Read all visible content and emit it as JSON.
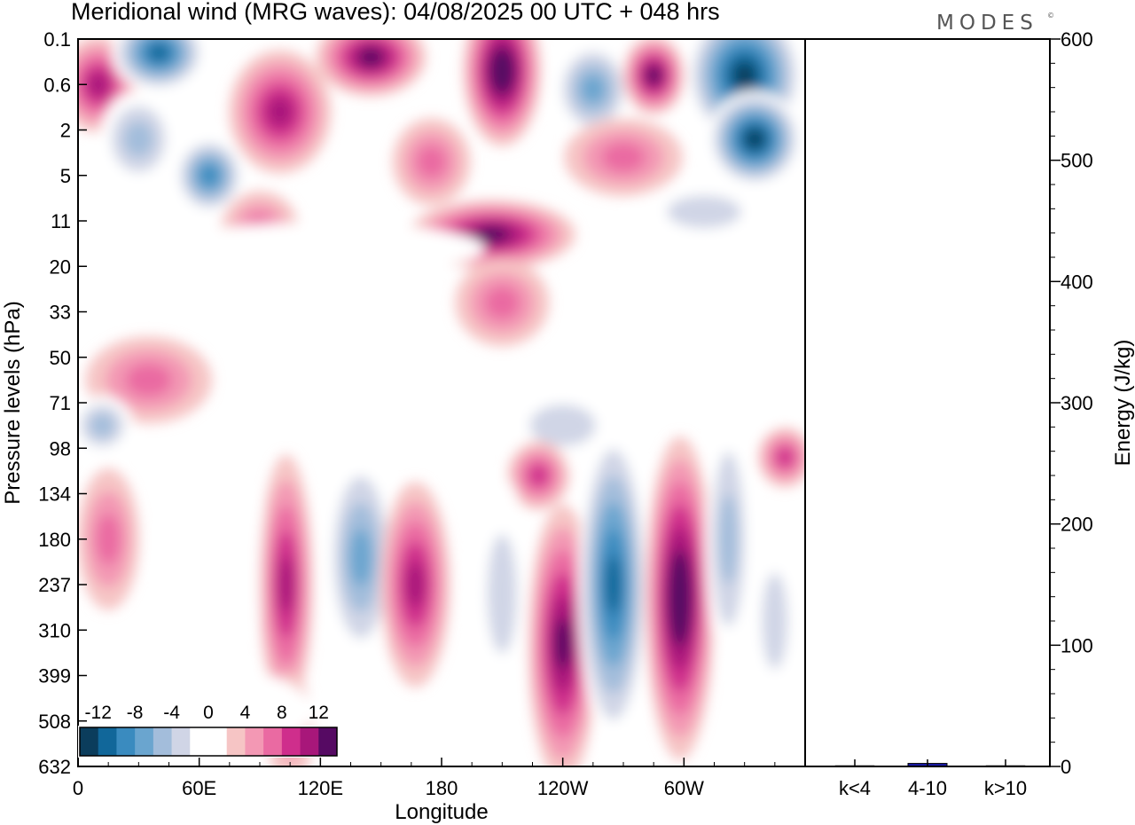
{
  "chart_data": {
    "type": "heatmap",
    "title": "Meridional wind (MRG waves):  04/08/2025  00 UTC  + 048 hrs",
    "brand": "MODES",
    "brand_mark": "©",
    "xlabel": "Longitude",
    "ylabel": "Pressure levels (hPa)",
    "y2label": "Energy (J/kg)",
    "x_ticks": [
      {
        "label": "0",
        "lon": 0
      },
      {
        "label": "60E",
        "lon": 60
      },
      {
        "label": "120E",
        "lon": 120
      },
      {
        "label": "180",
        "lon": 180
      },
      {
        "label": "120W",
        "lon": 240
      },
      {
        "label": "60W",
        "lon": 300
      }
    ],
    "xlim": [
      0,
      360
    ],
    "y_levels": [
      "0.1",
      "0.6",
      "2",
      "5",
      "11",
      "20",
      "33",
      "50",
      "71",
      "98",
      "134",
      "180",
      "237",
      "310",
      "399",
      "508",
      "632"
    ],
    "colorbar": {
      "labels": [
        "-12",
        "-8",
        "-4",
        "0",
        "4",
        "8",
        "12"
      ],
      "label_bins": [
        0,
        2,
        4,
        6,
        8,
        10,
        12
      ],
      "colors": [
        "#0b3d5c",
        "#11679a",
        "#3a8bbf",
        "#6aa5cf",
        "#a3bddb",
        "#d0d5e6",
        "#ffffff",
        "#ffffff",
        "#f6c5c5",
        "#f398b4",
        "#ea6aa2",
        "#cf2e8c",
        "#a8177a",
        "#560a63"
      ]
    },
    "cells": [
      {
        "lon": 10,
        "p": 1,
        "v": 10,
        "w": 18,
        "h": 1.0
      },
      {
        "lon": 40,
        "p": 0.3,
        "v": -12,
        "w": 22,
        "h": 0.8
      },
      {
        "lon": 30,
        "p": 2.2,
        "v": -6,
        "w": 18,
        "h": 1.0
      },
      {
        "lon": 65,
        "p": 3.0,
        "v": -9,
        "w": 16,
        "h": 0.8
      },
      {
        "lon": 90,
        "p": 4.2,
        "v": 6,
        "w": 18,
        "h": 0.8
      },
      {
        "lon": 100,
        "p": 1.6,
        "v": 9,
        "w": 24,
        "h": 1.3
      },
      {
        "lon": 145,
        "p": 0.4,
        "v": 11,
        "w": 26,
        "h": 0.8
      },
      {
        "lon": 175,
        "p": 2.7,
        "v": 5,
        "w": 18,
        "h": 0.9
      },
      {
        "lon": 210,
        "p": 0.7,
        "v": 13,
        "w": 18,
        "h": 1.6
      },
      {
        "lon": 205,
        "p": 4.3,
        "v": 12,
        "w": 40,
        "h": 0.7
      },
      {
        "lon": 255,
        "p": 1.1,
        "v": -8,
        "w": 18,
        "h": 1.0
      },
      {
        "lon": 285,
        "p": 0.8,
        "v": 11,
        "w": 14,
        "h": 0.8
      },
      {
        "lon": 270,
        "p": 2.6,
        "v": 6,
        "w": 28,
        "h": 0.8
      },
      {
        "lon": 330,
        "p": 0.8,
        "v": -13,
        "w": 28,
        "h": 1.5
      },
      {
        "lon": 335,
        "p": 2.2,
        "v": -13,
        "w": 22,
        "h": 1.0
      },
      {
        "lon": 310,
        "p": 3.8,
        "v": -4,
        "w": 34,
        "h": 0.6
      },
      {
        "lon": 120,
        "p": 4.6,
        "v": -1,
        "w": 80,
        "h": 0.5
      },
      {
        "lon": 40,
        "p": 4.8,
        "v": -1,
        "w": 60,
        "h": 0.4
      },
      {
        "lon": 210,
        "p": 5.8,
        "v": 5,
        "w": 22,
        "h": 0.9
      },
      {
        "lon": 35,
        "p": 7.5,
        "v": 6,
        "w": 30,
        "h": 0.9
      },
      {
        "lon": 12,
        "p": 8.5,
        "v": -6,
        "w": 14,
        "h": 0.6
      },
      {
        "lon": 335,
        "p": 7.5,
        "v": -2,
        "w": 22,
        "h": 1.0
      },
      {
        "lon": 240,
        "p": 8.5,
        "v": -3,
        "w": 30,
        "h": 0.8
      },
      {
        "lon": 350,
        "p": 9.2,
        "v": 7,
        "w": 12,
        "h": 0.6
      },
      {
        "lon": 228,
        "p": 9.6,
        "v": 7,
        "w": 14,
        "h": 0.7
      },
      {
        "lon": 15,
        "p": 11.0,
        "v": 5,
        "w": 14,
        "h": 1.5
      },
      {
        "lon": 70,
        "p": 11.5,
        "v": -2,
        "w": 28,
        "h": 1.5
      },
      {
        "lon": 103,
        "p": 12.0,
        "v": 9,
        "w": 12,
        "h": 2.8
      },
      {
        "lon": 140,
        "p": 11.4,
        "v": -7,
        "w": 16,
        "h": 2.3
      },
      {
        "lon": 167,
        "p": 12.0,
        "v": 10,
        "w": 16,
        "h": 2.2
      },
      {
        "lon": 210,
        "p": 12.2,
        "v": -4,
        "w": 12,
        "h": 2.5
      },
      {
        "lon": 240,
        "p": 13.3,
        "v": 11,
        "w": 16,
        "h": 3.0
      },
      {
        "lon": 265,
        "p": 12.0,
        "v": -11,
        "w": 16,
        "h": 3.5
      },
      {
        "lon": 298,
        "p": 12.3,
        "v": 14,
        "w": 16,
        "h": 3.5
      },
      {
        "lon": 322,
        "p": 11.0,
        "v": -6,
        "w": 10,
        "h": 2.8
      },
      {
        "lon": 345,
        "p": 12.8,
        "v": -4,
        "w": 10,
        "h": 2.0
      },
      {
        "lon": 105,
        "p": 15.2,
        "v": 4,
        "w": 10,
        "h": 1.2
      },
      {
        "lon": 55,
        "p": 14.8,
        "v": -1,
        "w": 60,
        "h": 1.0
      }
    ]
  },
  "energy_axis": {
    "ylim": [
      0,
      600
    ],
    "ticks": [
      "0",
      "100",
      "200",
      "300",
      "400",
      "500",
      "600"
    ],
    "bars": [
      {
        "label": "k<4",
        "value": 0
      },
      {
        "label": "4-10",
        "value": 2.5
      },
      {
        "label": "k>10",
        "value": 0
      }
    ],
    "bar_color": "#1a1aa8"
  }
}
